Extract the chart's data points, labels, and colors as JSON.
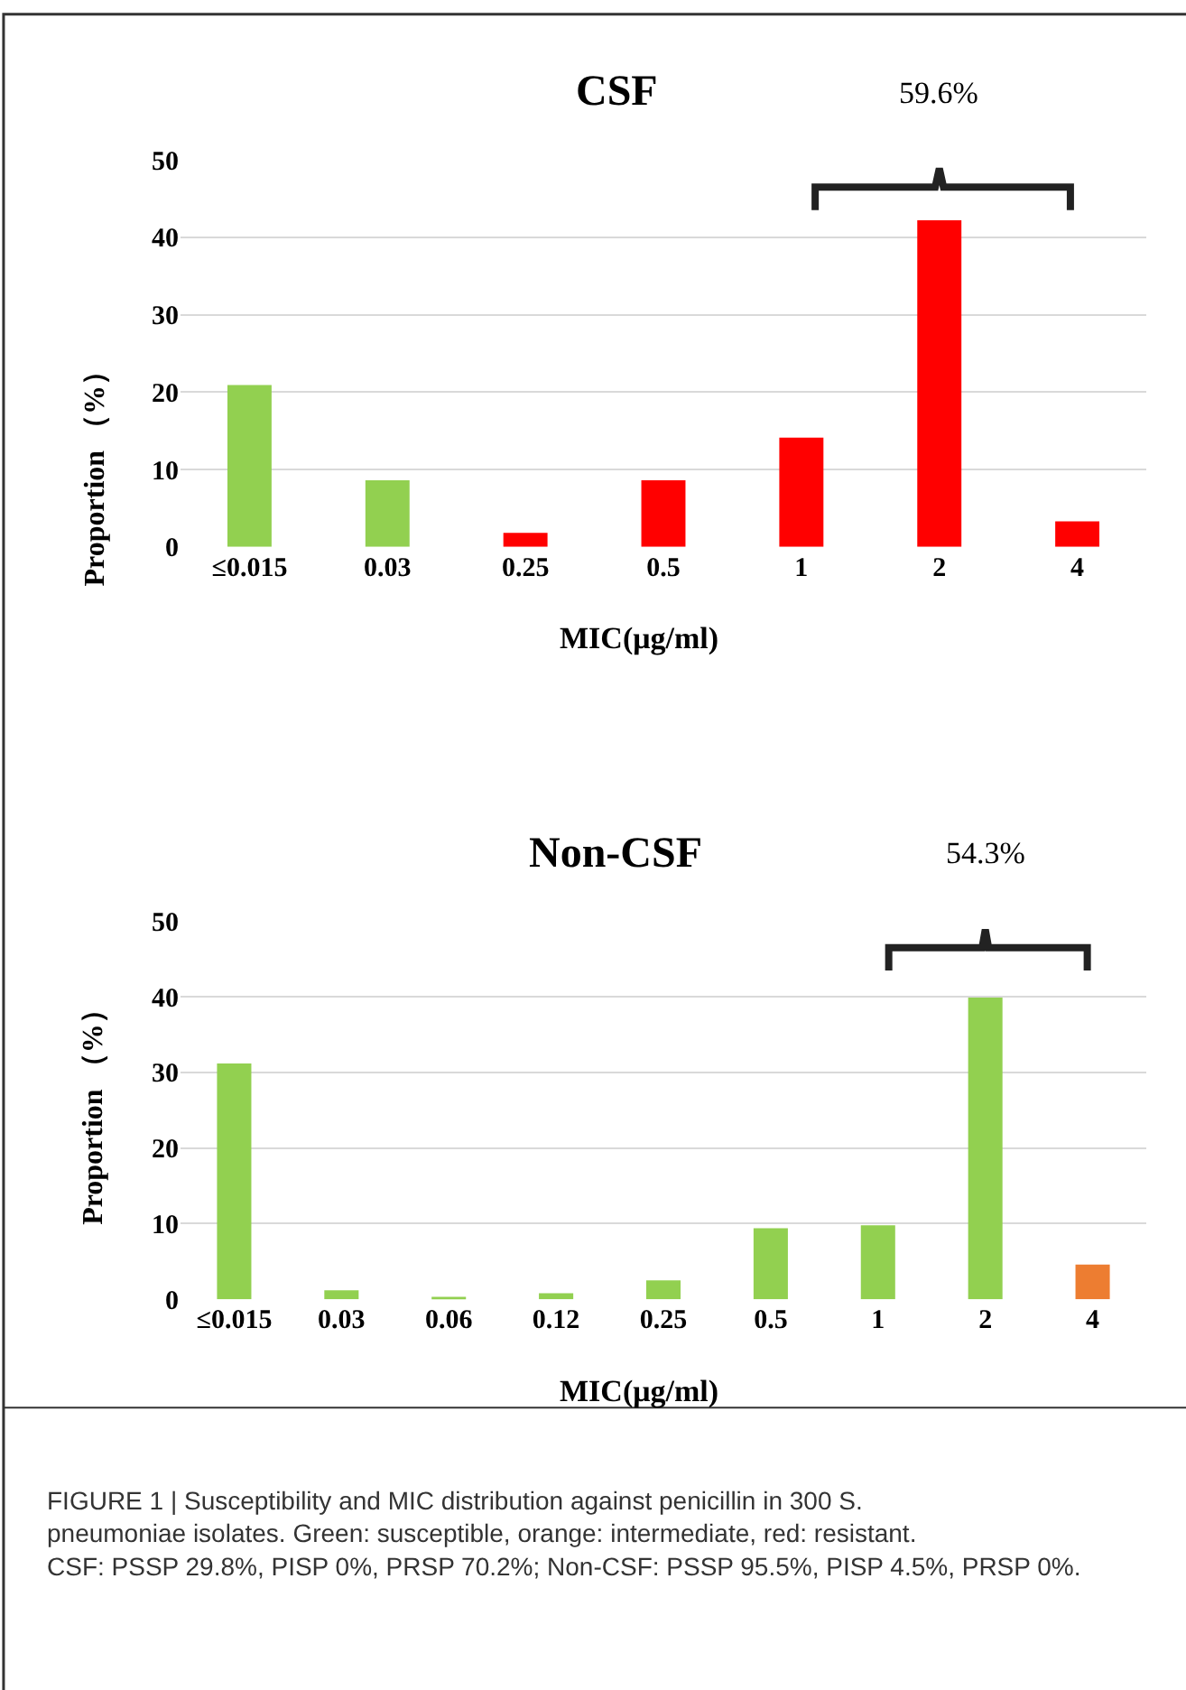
{
  "chart_data": [
    {
      "type": "bar",
      "title": "CSF",
      "xlabel": "MIC(μg/ml)",
      "ylabel": "Proportion （%）",
      "categories": [
        "≤0.015",
        "0.03",
        "0.25",
        "0.5",
        "1",
        "2",
        "4"
      ],
      "values": [
        20.9,
        8.6,
        1.8,
        8.6,
        14.1,
        42.2,
        3.3
      ],
      "colors": [
        "#92d050",
        "#92d050",
        "#ff0000",
        "#ff0000",
        "#ff0000",
        "#ff0000",
        "#ff0000"
      ],
      "ylim": [
        0,
        50
      ],
      "yticks": [
        0,
        10,
        20,
        30,
        40,
        50
      ],
      "grid": "y",
      "annotations": [
        "59.6%"
      ]
    },
    {
      "type": "bar",
      "title": "Non-CSF",
      "xlabel": "MIC(μg/ml)",
      "ylabel": "Proportion （%）",
      "categories": [
        "≤0.015",
        "0.03",
        "0.06",
        "0.12",
        "0.25",
        "0.5",
        "1",
        "2",
        "4"
      ],
      "values": [
        31.2,
        1.2,
        0.3,
        0.8,
        2.5,
        9.4,
        9.8,
        39.9,
        4.6
      ],
      "colors": [
        "#92d050",
        "#92d050",
        "#92d050",
        "#92d050",
        "#92d050",
        "#92d050",
        "#92d050",
        "#92d050",
        "#ed7d31"
      ],
      "ylim": [
        0,
        50
      ],
      "yticks": [
        0,
        10,
        20,
        30,
        40,
        50
      ],
      "grid": "y",
      "annotations": [
        "54.3%",
        "FIGURE 1 | Susceptibility and MIC distribution against penicillin in 300 S. pneumoniae isolates. Green: susceptible, orange: intermediate, red: resistant. CSF: PSSP 29.8%, PISP 0%, PRSP 70.2%; Non-CSF: PSSP 95.5%, PISP 4.5%, PRSP 0%."
      ]
    }
  ]
}
